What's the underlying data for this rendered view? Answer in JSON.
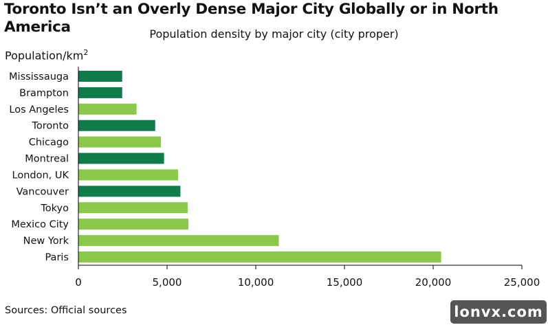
{
  "title": "Toronto Isn’t an Overly Dense Major City Globally or in North America",
  "subtitle": "Population density by major city (city proper)",
  "source": "Sources: Official sources",
  "watermark": "lonvx.com",
  "colors": {
    "dark_green": "#127b4a",
    "light_green": "#8cc84b",
    "axis": "#000000"
  },
  "chart_data": {
    "type": "bar",
    "orientation": "horizontal",
    "ylabel": "Population/km",
    "ylabel_superscript": "2",
    "categories": [
      "Mississauga",
      "Brampton",
      "Los Angeles",
      "Toronto",
      "Chicago",
      "Montreal",
      "London, UK",
      "Vancouver",
      "Tokyo",
      "Mexico City",
      "New York",
      "Paris"
    ],
    "values": [
      2470,
      2470,
      3280,
      4330,
      4650,
      4830,
      5620,
      5750,
      6160,
      6200,
      11300,
      20450
    ],
    "bar_color_keys": [
      "dark_green",
      "dark_green",
      "light_green",
      "dark_green",
      "light_green",
      "dark_green",
      "light_green",
      "dark_green",
      "light_green",
      "light_green",
      "light_green",
      "light_green"
    ],
    "xlim": [
      0,
      25000
    ],
    "xticks": [
      0,
      5000,
      10000,
      15000,
      20000,
      25000
    ],
    "xtick_labels": [
      "0",
      "5,000",
      "10,000",
      "15,000",
      "20,000",
      "25,000"
    ],
    "grid": false,
    "legend": "none"
  }
}
